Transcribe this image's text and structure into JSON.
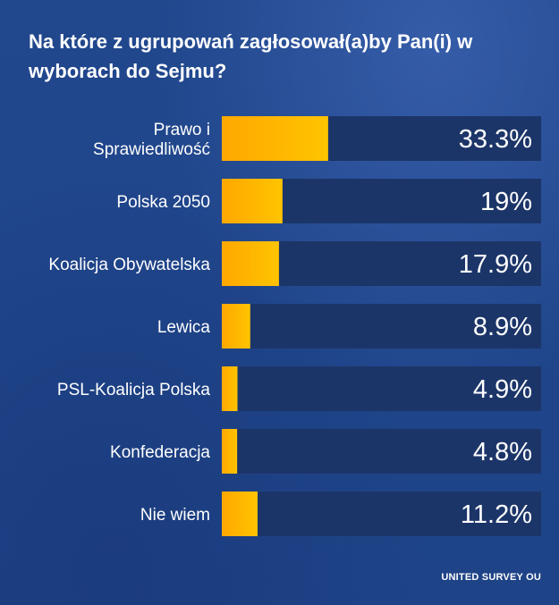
{
  "chart_data": {
    "type": "bar",
    "orientation": "horizontal",
    "title": "Na które z ugrupowań zagłosował(a)by Pan(i) w wyborach do Sejmu?",
    "categories": [
      "Prawo i Sprawiedliwość",
      "Polska 2050",
      "Koalicja Obywatelska",
      "Lewica",
      "PSL-Koalicja Polska",
      "Konfederacja",
      "Nie wiem"
    ],
    "category_lines": [
      [
        "Prawo i",
        "Sprawiedliwość"
      ],
      [
        "Polska 2050"
      ],
      [
        "Koalicja Obywatelska"
      ],
      [
        "Lewica"
      ],
      [
        "PSL-Koalicja Polska"
      ],
      [
        "Konfederacja"
      ],
      [
        "Nie wiem"
      ]
    ],
    "values": [
      33.3,
      19,
      17.9,
      8.9,
      4.9,
      4.8,
      11.2
    ],
    "value_labels": [
      "33.3%",
      "19%",
      "17.9%",
      "8.9%",
      "4.9%",
      "4.8%",
      "11.2%"
    ],
    "xlim": [
      0,
      100
    ],
    "colors": {
      "bar": "#ffc000",
      "track": "#1c3569",
      "background": "#1f4488",
      "text": "#ffffff"
    }
  },
  "source": "UNITED SURVEY OU"
}
